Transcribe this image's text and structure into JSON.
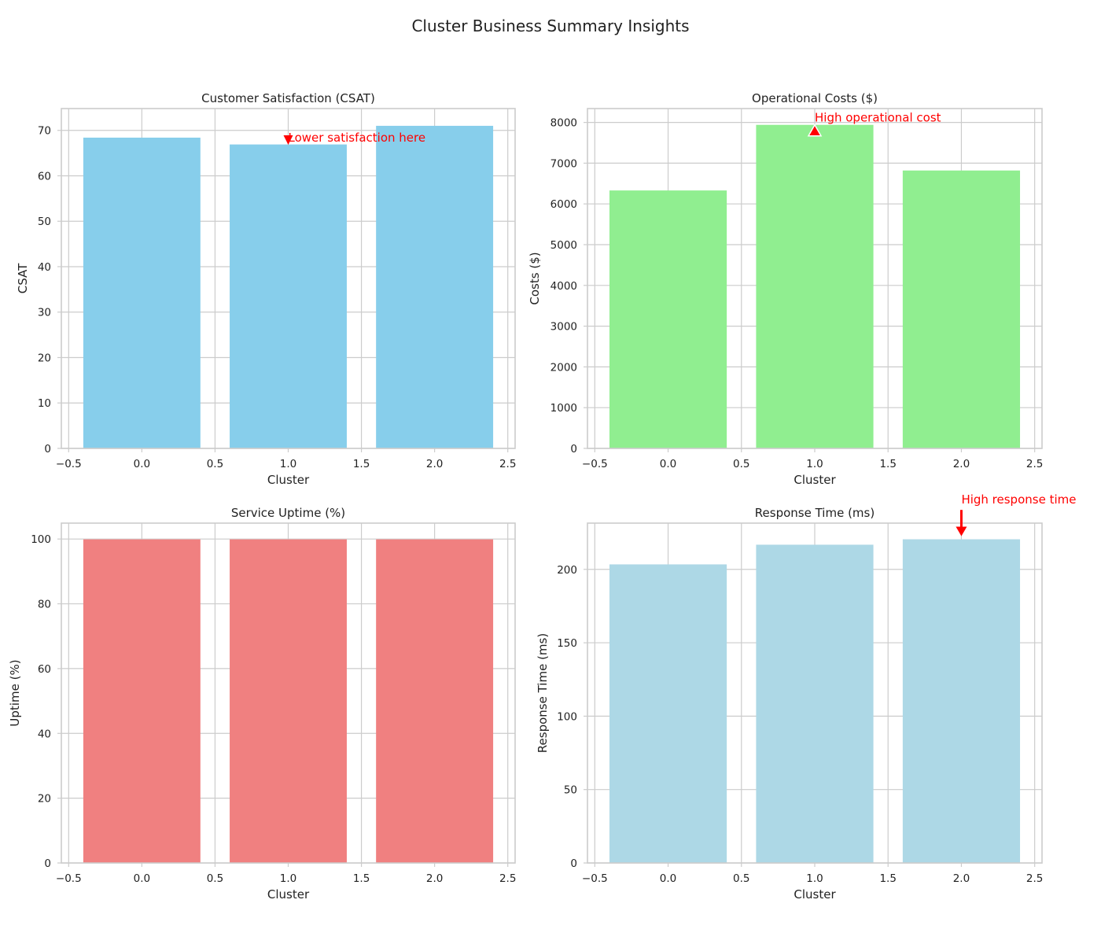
{
  "figure": {
    "title": "Cluster Business Summary Insights"
  },
  "chart_data": [
    {
      "type": "bar",
      "title": "Customer Satisfaction (CSAT)",
      "xlabel": "Cluster",
      "ylabel": "CSAT",
      "x": [
        0,
        1,
        2
      ],
      "values": [
        68.4,
        66.9,
        71.0
      ],
      "xlim": [
        -0.55,
        2.55
      ],
      "ylim": [
        0,
        74.8
      ],
      "xticks": [
        -0.5,
        0.0,
        0.5,
        1.0,
        1.5,
        2.0,
        2.5
      ],
      "xtick_labels": [
        "−0.5",
        "0.0",
        "0.5",
        "1.0",
        "1.5",
        "2.0",
        "2.5"
      ],
      "yticks": [
        0,
        10,
        20,
        30,
        40,
        50,
        60,
        70
      ],
      "ytick_labels": [
        "0",
        "10",
        "20",
        "30",
        "40",
        "50",
        "60",
        "70"
      ],
      "bar_color": "#87CEEB",
      "grid": true,
      "annotation": {
        "text": "Lower satisfaction here",
        "target": [
          1.0,
          66.9
        ],
        "text_pos": [
          1.0,
          68.4
        ],
        "color": "#ff0000"
      }
    },
    {
      "type": "bar",
      "title": "Operational Costs ($)",
      "xlabel": "Cluster",
      "ylabel": "Costs ($)",
      "x": [
        0,
        1,
        2
      ],
      "values": [
        6330,
        7940,
        6820
      ],
      "xlim": [
        -0.55,
        2.55
      ],
      "ylim": [
        0,
        8340
      ],
      "xticks": [
        -0.5,
        0.0,
        0.5,
        1.0,
        1.5,
        2.0,
        2.5
      ],
      "xtick_labels": [
        "−0.5",
        "0.0",
        "0.5",
        "1.0",
        "1.5",
        "2.0",
        "2.5"
      ],
      "yticks": [
        0,
        1000,
        2000,
        3000,
        4000,
        5000,
        6000,
        7000,
        8000
      ],
      "ytick_labels": [
        "0",
        "1000",
        "2000",
        "3000",
        "4000",
        "5000",
        "6000",
        "7000",
        "8000"
      ],
      "bar_color": "#90EE90",
      "grid": true,
      "annotation": {
        "text": "High operational cost",
        "target": [
          1.0,
          7940
        ],
        "text_pos": [
          1.0,
          7940
        ],
        "color": "#ff0000"
      }
    },
    {
      "type": "bar",
      "title": "Service Uptime (%)",
      "xlabel": "Cluster",
      "ylabel": "Uptime (%)",
      "x": [
        0,
        1,
        2
      ],
      "values": [
        99.9,
        99.9,
        99.9
      ],
      "xlim": [
        -0.55,
        2.55
      ],
      "ylim": [
        0,
        104.9
      ],
      "xticks": [
        -0.5,
        0.0,
        0.5,
        1.0,
        1.5,
        2.0,
        2.5
      ],
      "xtick_labels": [
        "−0.5",
        "0.0",
        "0.5",
        "1.0",
        "1.5",
        "2.0",
        "2.5"
      ],
      "yticks": [
        0,
        20,
        40,
        60,
        80,
        100
      ],
      "ytick_labels": [
        "0",
        "20",
        "40",
        "60",
        "80",
        "100"
      ],
      "bar_color": "#F08080",
      "grid": true
    },
    {
      "type": "bar",
      "title": "Response Time (ms)",
      "xlabel": "Cluster",
      "ylabel": "Response Time (ms)",
      "x": [
        0,
        1,
        2
      ],
      "values": [
        203.4,
        216.8,
        220.5
      ],
      "xlim": [
        -0.55,
        2.55
      ],
      "ylim": [
        0,
        231.5
      ],
      "xticks": [
        -0.5,
        0.0,
        0.5,
        1.0,
        1.5,
        2.0,
        2.5
      ],
      "xtick_labels": [
        "−0.5",
        "0.0",
        "0.5",
        "1.0",
        "1.5",
        "2.0",
        "2.5"
      ],
      "yticks": [
        0,
        50,
        100,
        150,
        200
      ],
      "ytick_labels": [
        "0",
        "50",
        "100",
        "150",
        "200"
      ],
      "bar_color": "#ADD8E6",
      "grid": true,
      "annotation": {
        "text": "High response time",
        "target": [
          2.0,
          220.5
        ],
        "text_pos": [
          2.0,
          240.5
        ],
        "color": "#ff0000"
      }
    }
  ]
}
